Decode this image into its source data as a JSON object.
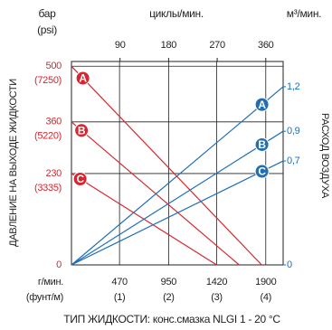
{
  "chart_data": {
    "type": "line",
    "y_title": "ДАВЛЕНИЕ НА ВЫХОДЕ ЖИДКОСТИ",
    "y_unit": "бар",
    "y_unit_psi": "(psi)",
    "x2_title": "циклы/мин.",
    "y2_unit": "м³/мин.",
    "y2_title": "РАСХОД ВОЗДУХА",
    "x_unit": "г/мин.",
    "x_unit_sub": "(фунт/м)",
    "x_title": "ТИП ЖИДКОСТИ: конс.смазка NLGI 1 - 20 °C",
    "xlim": [
      0,
      2070
    ],
    "xticks": [
      470,
      950,
      1420,
      1900
    ],
    "xtick_sublabels": [
      "(1)",
      "(2)",
      "(3)",
      "(4)"
    ],
    "x2lim": [
      0,
      392.2
    ],
    "x2ticks": [
      90,
      180,
      270,
      360
    ],
    "ylim": [
      0,
      512
    ],
    "yticks": [
      0,
      230,
      360,
      500
    ],
    "ytick_psi": [
      null,
      "(3335)",
      "(5220)",
      "(7250)"
    ],
    "y2lim": [
      0,
      1.37
    ],
    "y2ticks": [
      0,
      {
        "value": 0.7,
        "label": "0,7"
      },
      {
        "value": 0.9,
        "label": "0,9"
      },
      {
        "value": 1.2,
        "label": "1,2"
      }
    ],
    "grid": true,
    "series": [
      {
        "name": "A",
        "color": "#d7262f",
        "x": [
          0,
          1860
        ],
        "values": [
          500,
          0
        ]
      },
      {
        "name": "B",
        "color": "#d7262f",
        "x": [
          0,
          1640
        ],
        "values": [
          360,
          0
        ]
      },
      {
        "name": "C",
        "color": "#d7262f",
        "x": [
          0,
          1420
        ],
        "values": [
          230,
          0
        ]
      },
      {
        "name": "A",
        "color": "#1f6fb5",
        "axis": "y2",
        "x": [
          0,
          2070
        ],
        "values": [
          0,
          1.2
        ]
      },
      {
        "name": "B",
        "color": "#1f6fb5",
        "axis": "y2",
        "x": [
          0,
          2070
        ],
        "values": [
          0,
          0.9
        ]
      },
      {
        "name": "C",
        "color": "#1f6fb5",
        "axis": "y2",
        "x": [
          0,
          2070
        ],
        "values": [
          0,
          0.7
        ]
      }
    ]
  }
}
